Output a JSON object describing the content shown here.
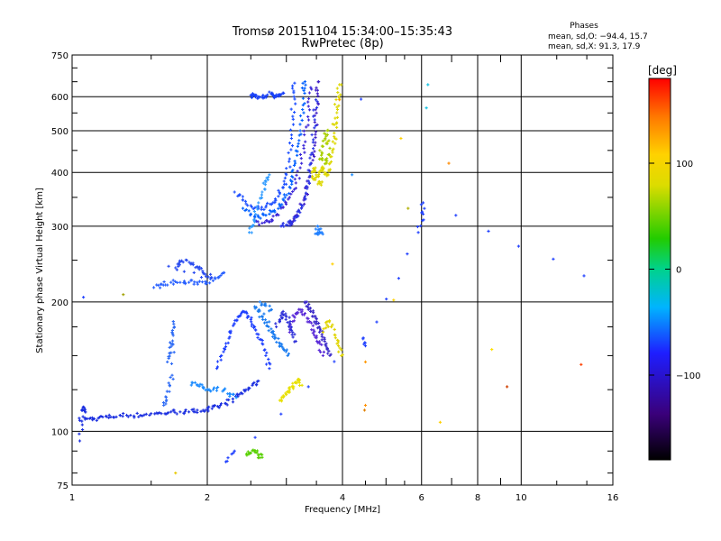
{
  "chart_data": {
    "type": "scatter",
    "title": "Tromsø 20151104 15:34:00–15:35:43",
    "subtitle": "RwPretec (8p)",
    "xlabel": "Frequency [MHz]",
    "ylabel": "Stationary phase Virtual Height [km]",
    "x_scale": "log",
    "y_scale": "log",
    "xlim": [
      1,
      16
    ],
    "ylim": [
      75,
      750
    ],
    "x_ticks": [
      1,
      2,
      4,
      6,
      8,
      10,
      16
    ],
    "x_tick_labels": [
      "1",
      "2",
      "4",
      "6",
      "8",
      "10",
      "16"
    ],
    "x_minor_ticks": [
      3,
      5,
      7,
      9
    ],
    "y_ticks": [
      75,
      100,
      200,
      300,
      400,
      500,
      600,
      750
    ],
    "y_tick_labels": [
      "75",
      "100",
      "200",
      "300",
      "400",
      "500",
      "600",
      "750"
    ],
    "grid": true,
    "stats": {
      "title": "Phases",
      "line_o": "mean, sd,O: −94.4, 15.7",
      "line_x": "mean, sd,X: 91.3, 17.9"
    },
    "colorbar": {
      "label": "[deg]",
      "range": [
        -180,
        180
      ],
      "tick_values": [
        100,
        0,
        -100
      ],
      "tick_labels": [
        "100",
        "0",
        "−100"
      ]
    },
    "traces": [
      {
        "color": "#1a2ee0",
        "points": [
          [
            1.04,
            106
          ],
          [
            1.08,
            107
          ],
          [
            1.12,
            107
          ],
          [
            1.17,
            108
          ],
          [
            1.22,
            108
          ],
          [
            1.28,
            109
          ],
          [
            1.35,
            109
          ],
          [
            1.42,
            109
          ],
          [
            1.5,
            110
          ],
          [
            1.58,
            110
          ],
          [
            1.66,
            111
          ],
          [
            1.74,
            111
          ],
          [
            1.82,
            111
          ],
          [
            1.9,
            112
          ],
          [
            1.98,
            112
          ],
          [
            2.05,
            113
          ],
          [
            2.12,
            114
          ],
          [
            2.2,
            116
          ],
          [
            2.28,
            119
          ],
          [
            2.36,
            122
          ],
          [
            2.44,
            125
          ],
          [
            2.52,
            128
          ],
          [
            2.6,
            131
          ]
        ]
      },
      {
        "color": "#1a2ee0",
        "points": [
          [
            1.05,
            112
          ],
          [
            1.06,
            114
          ],
          [
            1.07,
            111
          ],
          [
            1.04,
            95
          ]
        ]
      },
      {
        "color": "#2860ff",
        "points": [
          [
            1.52,
            216
          ],
          [
            1.58,
            220
          ],
          [
            1.66,
            222
          ],
          [
            1.74,
            222
          ],
          [
            1.82,
            222
          ],
          [
            1.9,
            222
          ],
          [
            1.98,
            223
          ],
          [
            2.06,
            224
          ],
          [
            2.12,
            228
          ],
          [
            2.18,
            234
          ]
        ]
      },
      {
        "color": "#2f6cf5",
        "points": [
          [
            1.63,
            145
          ],
          [
            1.65,
            152
          ],
          [
            1.66,
            160
          ],
          [
            1.67,
            170
          ],
          [
            1.68,
            180
          ],
          [
            1.67,
            135
          ],
          [
            1.65,
            128
          ],
          [
            1.62,
            120
          ],
          [
            1.6,
            115
          ]
        ]
      },
      {
        "color": "#2a4cf0",
        "points": [
          [
            1.7,
            240
          ],
          [
            1.74,
            248
          ],
          [
            1.8,
            250
          ],
          [
            1.86,
            244
          ],
          [
            1.92,
            238
          ],
          [
            1.98,
            232
          ],
          [
            2.04,
            228
          ],
          [
            1.64,
            242
          ]
        ]
      },
      {
        "color": "#1d8cff",
        "points": [
          [
            1.85,
            130
          ],
          [
            1.9,
            128
          ],
          [
            1.96,
            126
          ],
          [
            2.02,
            125
          ],
          [
            2.1,
            126
          ],
          [
            2.18,
            125
          ],
          [
            2.25,
            122
          ],
          [
            2.32,
            120
          ]
        ]
      },
      {
        "color": "#1e40ff",
        "points": [
          [
            2.1,
            140
          ],
          [
            2.15,
            150
          ],
          [
            2.2,
            160
          ],
          [
            2.25,
            170
          ],
          [
            2.3,
            178
          ],
          [
            2.35,
            185
          ],
          [
            2.4,
            190
          ],
          [
            2.45,
            188
          ],
          [
            2.5,
            182
          ],
          [
            2.55,
            175
          ],
          [
            2.6,
            168
          ],
          [
            2.65,
            160
          ],
          [
            2.7,
            150
          ],
          [
            2.75,
            140
          ]
        ]
      },
      {
        "color": "#1a7cf0",
        "points": [
          [
            2.55,
            195
          ],
          [
            2.6,
            190
          ],
          [
            2.66,
            182
          ],
          [
            2.72,
            176
          ],
          [
            2.78,
            170
          ],
          [
            2.84,
            165
          ],
          [
            2.9,
            160
          ],
          [
            2.96,
            155
          ],
          [
            3.02,
            150
          ],
          [
            2.62,
            200
          ],
          [
            2.7,
            196
          ],
          [
            2.78,
            192
          ]
        ]
      },
      {
        "color": "#0060ff",
        "points": [
          [
            2.4,
            330
          ],
          [
            2.5,
            320
          ],
          [
            2.6,
            315
          ],
          [
            2.7,
            318
          ],
          [
            2.8,
            325
          ],
          [
            2.9,
            335
          ],
          [
            2.98,
            350
          ],
          [
            3.05,
            370
          ],
          [
            3.1,
            390
          ],
          [
            3.14,
            420
          ],
          [
            3.18,
            460
          ],
          [
            3.22,
            500
          ],
          [
            3.26,
            560
          ],
          [
            3.28,
            620
          ],
          [
            3.3,
            650
          ]
        ]
      },
      {
        "color": "#1d4fff",
        "points": [
          [
            2.3,
            360
          ],
          [
            2.4,
            345
          ],
          [
            2.5,
            335
          ],
          [
            2.6,
            330
          ],
          [
            2.7,
            332
          ],
          [
            2.8,
            340
          ],
          [
            2.88,
            352
          ],
          [
            2.95,
            370
          ],
          [
            3.0,
            395
          ],
          [
            3.05,
            430
          ],
          [
            3.08,
            480
          ],
          [
            3.1,
            540
          ],
          [
            3.12,
            600
          ],
          [
            3.13,
            645
          ]
        ]
      },
      {
        "color": "#3a26d8",
        "points": [
          [
            2.55,
            310
          ],
          [
            2.65,
            305
          ],
          [
            2.75,
            308
          ],
          [
            2.85,
            318
          ],
          [
            2.95,
            332
          ],
          [
            3.05,
            350
          ],
          [
            3.15,
            378
          ],
          [
            3.22,
            410
          ],
          [
            3.28,
            455
          ],
          [
            3.32,
            510
          ],
          [
            3.36,
            570
          ],
          [
            3.4,
            630
          ]
        ]
      },
      {
        "color": "#4020c8",
        "points": [
          [
            3.05,
            305
          ],
          [
            3.12,
            312
          ],
          [
            3.2,
            325
          ],
          [
            3.28,
            345
          ],
          [
            3.34,
            370
          ],
          [
            3.4,
            400
          ],
          [
            3.44,
            440
          ],
          [
            3.48,
            490
          ],
          [
            3.5,
            550
          ],
          [
            3.52,
            610
          ],
          [
            3.54,
            650
          ]
        ]
      },
      {
        "color": "#2a36e6",
        "points": [
          [
            2.92,
            300
          ],
          [
            3.0,
            302
          ],
          [
            3.08,
            306
          ],
          [
            3.16,
            315
          ],
          [
            3.24,
            330
          ],
          [
            3.3,
            352
          ],
          [
            3.36,
            382
          ],
          [
            3.4,
            420
          ],
          [
            3.44,
            470
          ],
          [
            3.47,
            530
          ],
          [
            3.49,
            590
          ]
        ]
      },
      {
        "color": "#1840f8",
        "points": [
          [
            2.75,
            615
          ],
          [
            2.8,
            605
          ],
          [
            2.85,
            600
          ],
          [
            2.9,
            605
          ],
          [
            2.95,
            612
          ],
          [
            2.6,
            600
          ],
          [
            2.55,
            602
          ],
          [
            2.5,
            605
          ],
          [
            2.65,
            598
          ],
          [
            2.7,
            602
          ]
        ]
      },
      {
        "color": "#2f9bff",
        "points": [
          [
            2.48,
            290
          ],
          [
            2.52,
            300
          ],
          [
            2.55,
            310
          ],
          [
            2.6,
            340
          ],
          [
            2.65,
            360
          ],
          [
            2.7,
            380
          ],
          [
            2.75,
            395
          ]
        ]
      },
      {
        "color": "#ddd800",
        "points": [
          [
            3.5,
            390
          ],
          [
            3.55,
            400
          ],
          [
            3.6,
            410
          ],
          [
            3.65,
            400
          ],
          [
            3.7,
            395
          ],
          [
            3.75,
            420
          ],
          [
            3.8,
            450
          ],
          [
            3.85,
            480
          ],
          [
            3.88,
            520
          ],
          [
            3.9,
            560
          ],
          [
            3.92,
            600
          ],
          [
            3.94,
            640
          ],
          [
            3.6,
            380
          ],
          [
            3.55,
            378
          ],
          [
            3.45,
            385
          ],
          [
            3.48,
            410
          ],
          [
            3.42,
            400
          ]
        ]
      },
      {
        "color": "#a8d000",
        "points": [
          [
            3.62,
            460
          ],
          [
            3.66,
            480
          ],
          [
            3.7,
            500
          ],
          [
            3.72,
            440
          ],
          [
            3.68,
            420
          ],
          [
            3.58,
            430
          ],
          [
            3.56,
            450
          ]
        ]
      },
      {
        "color": "#5a2ad8",
        "points": [
          [
            3.05,
            170
          ],
          [
            3.1,
            180
          ],
          [
            3.15,
            188
          ],
          [
            3.22,
            192
          ],
          [
            3.3,
            188
          ],
          [
            3.38,
            180
          ],
          [
            3.45,
            172
          ],
          [
            3.5,
            165
          ],
          [
            3.56,
            160
          ],
          [
            3.62,
            150
          ]
        ]
      },
      {
        "color": "#2c2ed8",
        "points": [
          [
            2.85,
            175
          ],
          [
            2.9,
            182
          ],
          [
            2.95,
            190
          ],
          [
            3.0,
            185
          ],
          [
            3.05,
            178
          ],
          [
            3.1,
            170
          ],
          [
            3.15,
            162
          ]
        ]
      },
      {
        "color": "#3a28c8",
        "points": [
          [
            3.3,
            200
          ],
          [
            3.35,
            195
          ],
          [
            3.4,
            190
          ],
          [
            3.45,
            185
          ],
          [
            3.5,
            180
          ],
          [
            3.55,
            175
          ],
          [
            3.6,
            168
          ],
          [
            3.65,
            162
          ],
          [
            3.7,
            155
          ],
          [
            3.75,
            150
          ]
        ]
      },
      {
        "color": "#e8e000",
        "points": [
          [
            2.9,
            118
          ],
          [
            2.95,
            120
          ],
          [
            3.0,
            122
          ],
          [
            3.05,
            125
          ],
          [
            3.1,
            127
          ],
          [
            3.15,
            130
          ],
          [
            3.2,
            132
          ],
          [
            3.25,
            128
          ]
        ]
      },
      {
        "color": "#e0d400",
        "points": [
          [
            3.62,
            170
          ],
          [
            3.7,
            180
          ],
          [
            3.78,
            175
          ],
          [
            3.86,
            165
          ],
          [
            3.92,
            158
          ],
          [
            3.98,
            150
          ]
        ]
      },
      {
        "color": "#2080ff",
        "points": [
          [
            3.55,
            295
          ],
          [
            3.6,
            290
          ],
          [
            3.48,
            288
          ],
          [
            3.52,
            300
          ]
        ]
      },
      {
        "color": "#58d000",
        "points": [
          [
            2.45,
            88
          ],
          [
            2.5,
            89
          ],
          [
            2.55,
            90
          ],
          [
            2.6,
            88
          ],
          [
            2.65,
            87
          ]
        ]
      },
      {
        "color": "#2040ff",
        "points": [
          [
            2.3,
            90
          ],
          [
            2.2,
            85
          ],
          [
            4.45,
            165
          ],
          [
            4.5,
            158
          ],
          [
            5.9,
            290
          ],
          [
            6.05,
            320
          ],
          [
            6.05,
            340
          ],
          [
            13.8,
            230
          ]
        ]
      }
    ],
    "scatter_points": [
      {
        "x": 1.3,
        "y": 208,
        "color": "#a0a000"
      },
      {
        "x": 1.06,
        "y": 205,
        "color": "#2040ff"
      },
      {
        "x": 1.7,
        "y": 80,
        "color": "#e8c800"
      },
      {
        "x": 3.94,
        "y": 590,
        "color": "#ff9a00"
      },
      {
        "x": 4.4,
        "y": 592,
        "color": "#2040ff"
      },
      {
        "x": 5.4,
        "y": 480,
        "color": "#ffd000"
      },
      {
        "x": 6.2,
        "y": 640,
        "color": "#10c0e0"
      },
      {
        "x": 6.15,
        "y": 565,
        "color": "#10c0e0"
      },
      {
        "x": 6.9,
        "y": 420,
        "color": "#ff8a00"
      },
      {
        "x": 4.2,
        "y": 395,
        "color": "#2090ff"
      },
      {
        "x": 4.5,
        "y": 115,
        "color": "#ff9000"
      },
      {
        "x": 4.48,
        "y": 112,
        "color": "#e08000"
      },
      {
        "x": 4.5,
        "y": 145,
        "color": "#ff9a00"
      },
      {
        "x": 5.2,
        "y": 202,
        "color": "#ffd000"
      },
      {
        "x": 6.6,
        "y": 105,
        "color": "#ffd000"
      },
      {
        "x": 8.6,
        "y": 155,
        "color": "#ffe000"
      },
      {
        "x": 9.3,
        "y": 127,
        "color": "#d04000"
      },
      {
        "x": 13.6,
        "y": 143,
        "color": "#ff4000"
      },
      {
        "x": 5.6,
        "y": 330,
        "color": "#b0b000"
      },
      {
        "x": 3.8,
        "y": 245,
        "color": "#ffd000"
      }
    ]
  }
}
